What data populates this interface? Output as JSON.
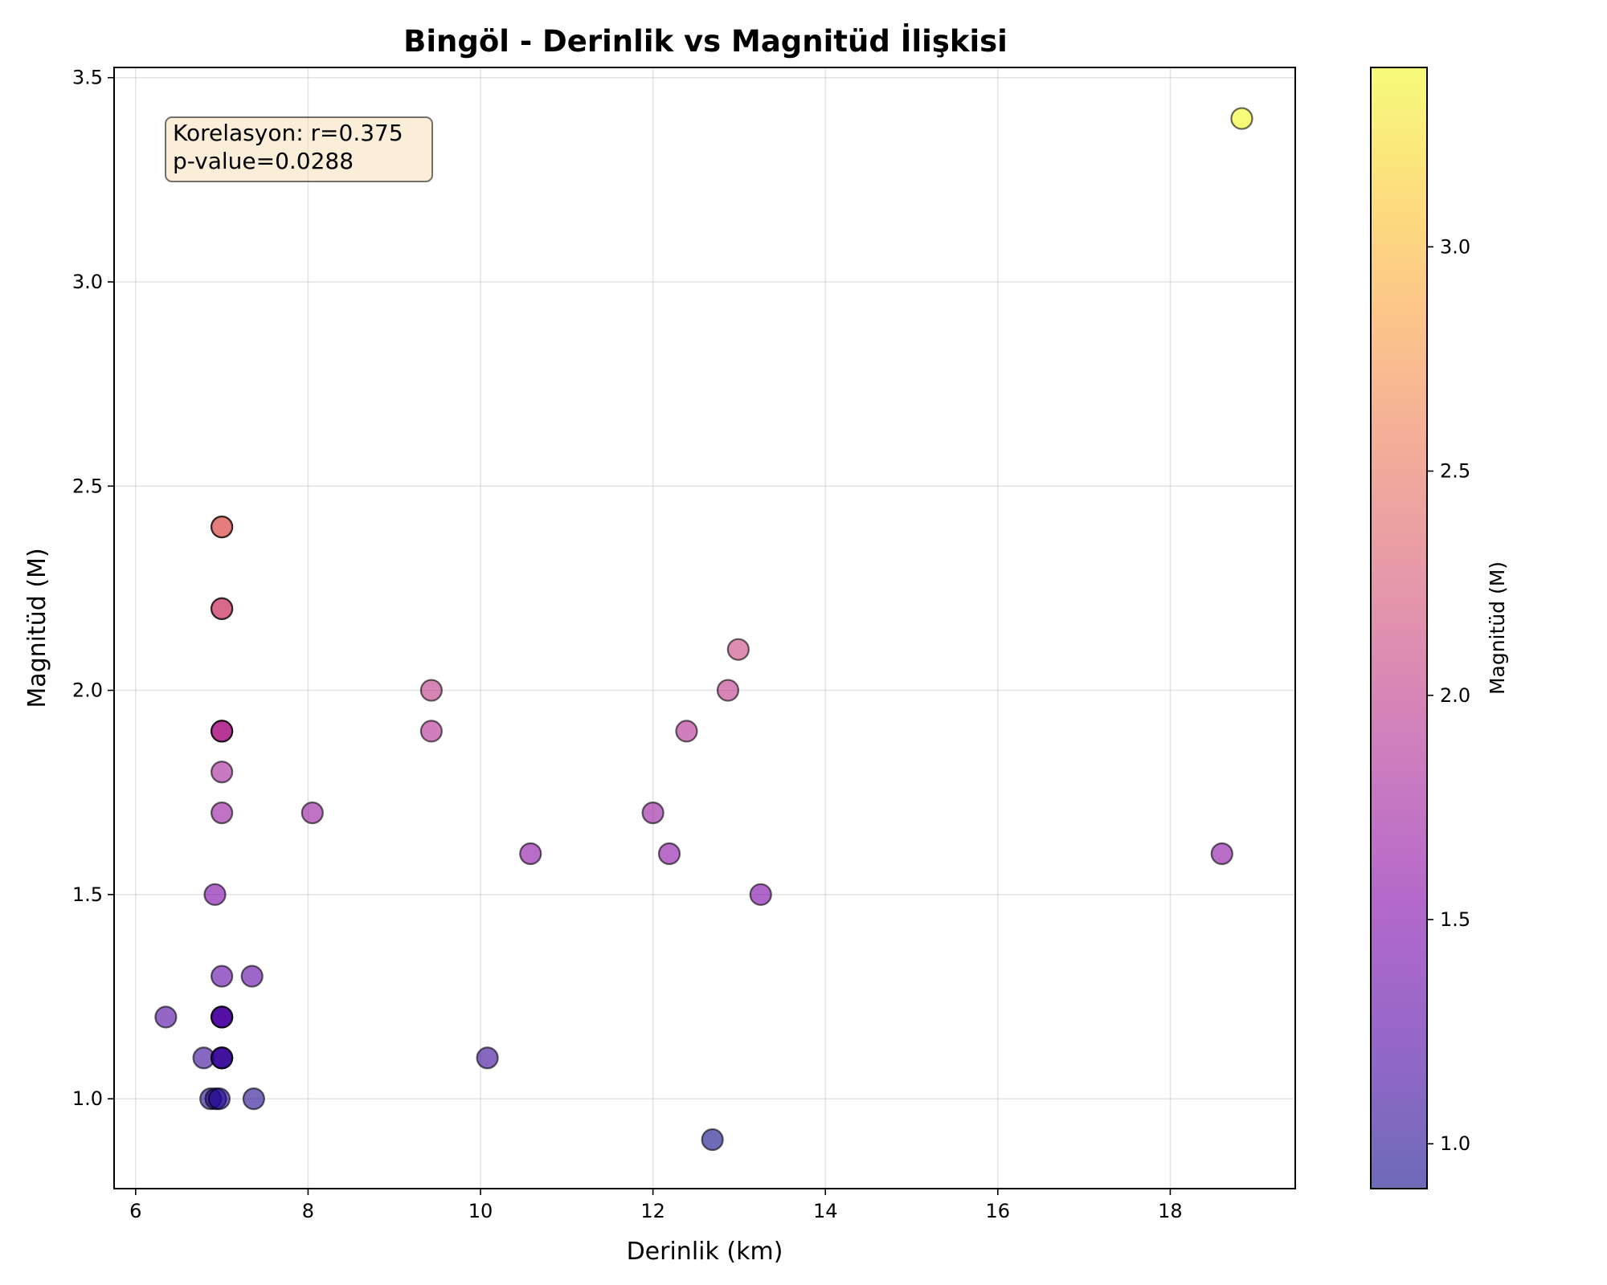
{
  "chart_data": {
    "type": "scatter",
    "title": "Bingöl - Derinlik vs Magnitüd İlişkisi",
    "xlabel": "Derinlik (km)",
    "ylabel": "Magnitüd (M)",
    "xlim": [
      5.75,
      19.45
    ],
    "ylim": [
      0.78,
      3.525
    ],
    "xticks": [
      6,
      8,
      10,
      12,
      14,
      16,
      18
    ],
    "yticks": [
      1.0,
      1.5,
      2.0,
      2.5,
      3.0,
      3.5
    ],
    "ytick_labels": [
      "1.0",
      "1.5",
      "2.0",
      "2.5",
      "3.0",
      "3.5"
    ],
    "grid": true,
    "colormap": "plasma",
    "point_alpha": 0.6,
    "annotation": {
      "line1": "Korelasyon: r=0.375",
      "line2": "p-value=0.0288"
    },
    "colorbar": {
      "label": "Magnitüd (M)",
      "range": [
        0.9,
        3.4
      ],
      "ticks": [
        1.0,
        1.5,
        2.0,
        2.5,
        3.0
      ],
      "tick_labels": [
        "1.0",
        "1.5",
        "2.0",
        "2.5",
        "3.0"
      ]
    },
    "points": [
      {
        "x": 18.83,
        "y": 3.4
      },
      {
        "x": 7.0,
        "y": 2.4
      },
      {
        "x": 7.0,
        "y": 2.4
      },
      {
        "x": 7.0,
        "y": 2.2
      },
      {
        "x": 7.0,
        "y": 2.2
      },
      {
        "x": 12.99,
        "y": 2.1
      },
      {
        "x": 9.43,
        "y": 2.0
      },
      {
        "x": 12.87,
        "y": 2.0
      },
      {
        "x": 7.0,
        "y": 1.9
      },
      {
        "x": 7.0,
        "y": 1.9
      },
      {
        "x": 7.0,
        "y": 1.9
      },
      {
        "x": 9.43,
        "y": 1.9
      },
      {
        "x": 12.39,
        "y": 1.9
      },
      {
        "x": 7.0,
        "y": 1.8
      },
      {
        "x": 7.0,
        "y": 1.7
      },
      {
        "x": 8.05,
        "y": 1.7
      },
      {
        "x": 12.0,
        "y": 1.7
      },
      {
        "x": 10.58,
        "y": 1.6
      },
      {
        "x": 12.19,
        "y": 1.6
      },
      {
        "x": 18.6,
        "y": 1.6
      },
      {
        "x": 6.92,
        "y": 1.5
      },
      {
        "x": 13.25,
        "y": 1.5
      },
      {
        "x": 7.0,
        "y": 1.3
      },
      {
        "x": 7.35,
        "y": 1.3
      },
      {
        "x": 6.35,
        "y": 1.2
      },
      {
        "x": 7.0,
        "y": 1.2
      },
      {
        "x": 7.0,
        "y": 1.2
      },
      {
        "x": 7.0,
        "y": 1.2
      },
      {
        "x": 6.79,
        "y": 1.1
      },
      {
        "x": 7.0,
        "y": 1.1
      },
      {
        "x": 7.0,
        "y": 1.1
      },
      {
        "x": 7.0,
        "y": 1.1
      },
      {
        "x": 10.08,
        "y": 1.1
      },
      {
        "x": 6.87,
        "y": 1.0
      },
      {
        "x": 6.93,
        "y": 1.0
      },
      {
        "x": 6.97,
        "y": 1.0
      },
      {
        "x": 7.37,
        "y": 1.0
      },
      {
        "x": 12.69,
        "y": 0.9
      }
    ]
  }
}
